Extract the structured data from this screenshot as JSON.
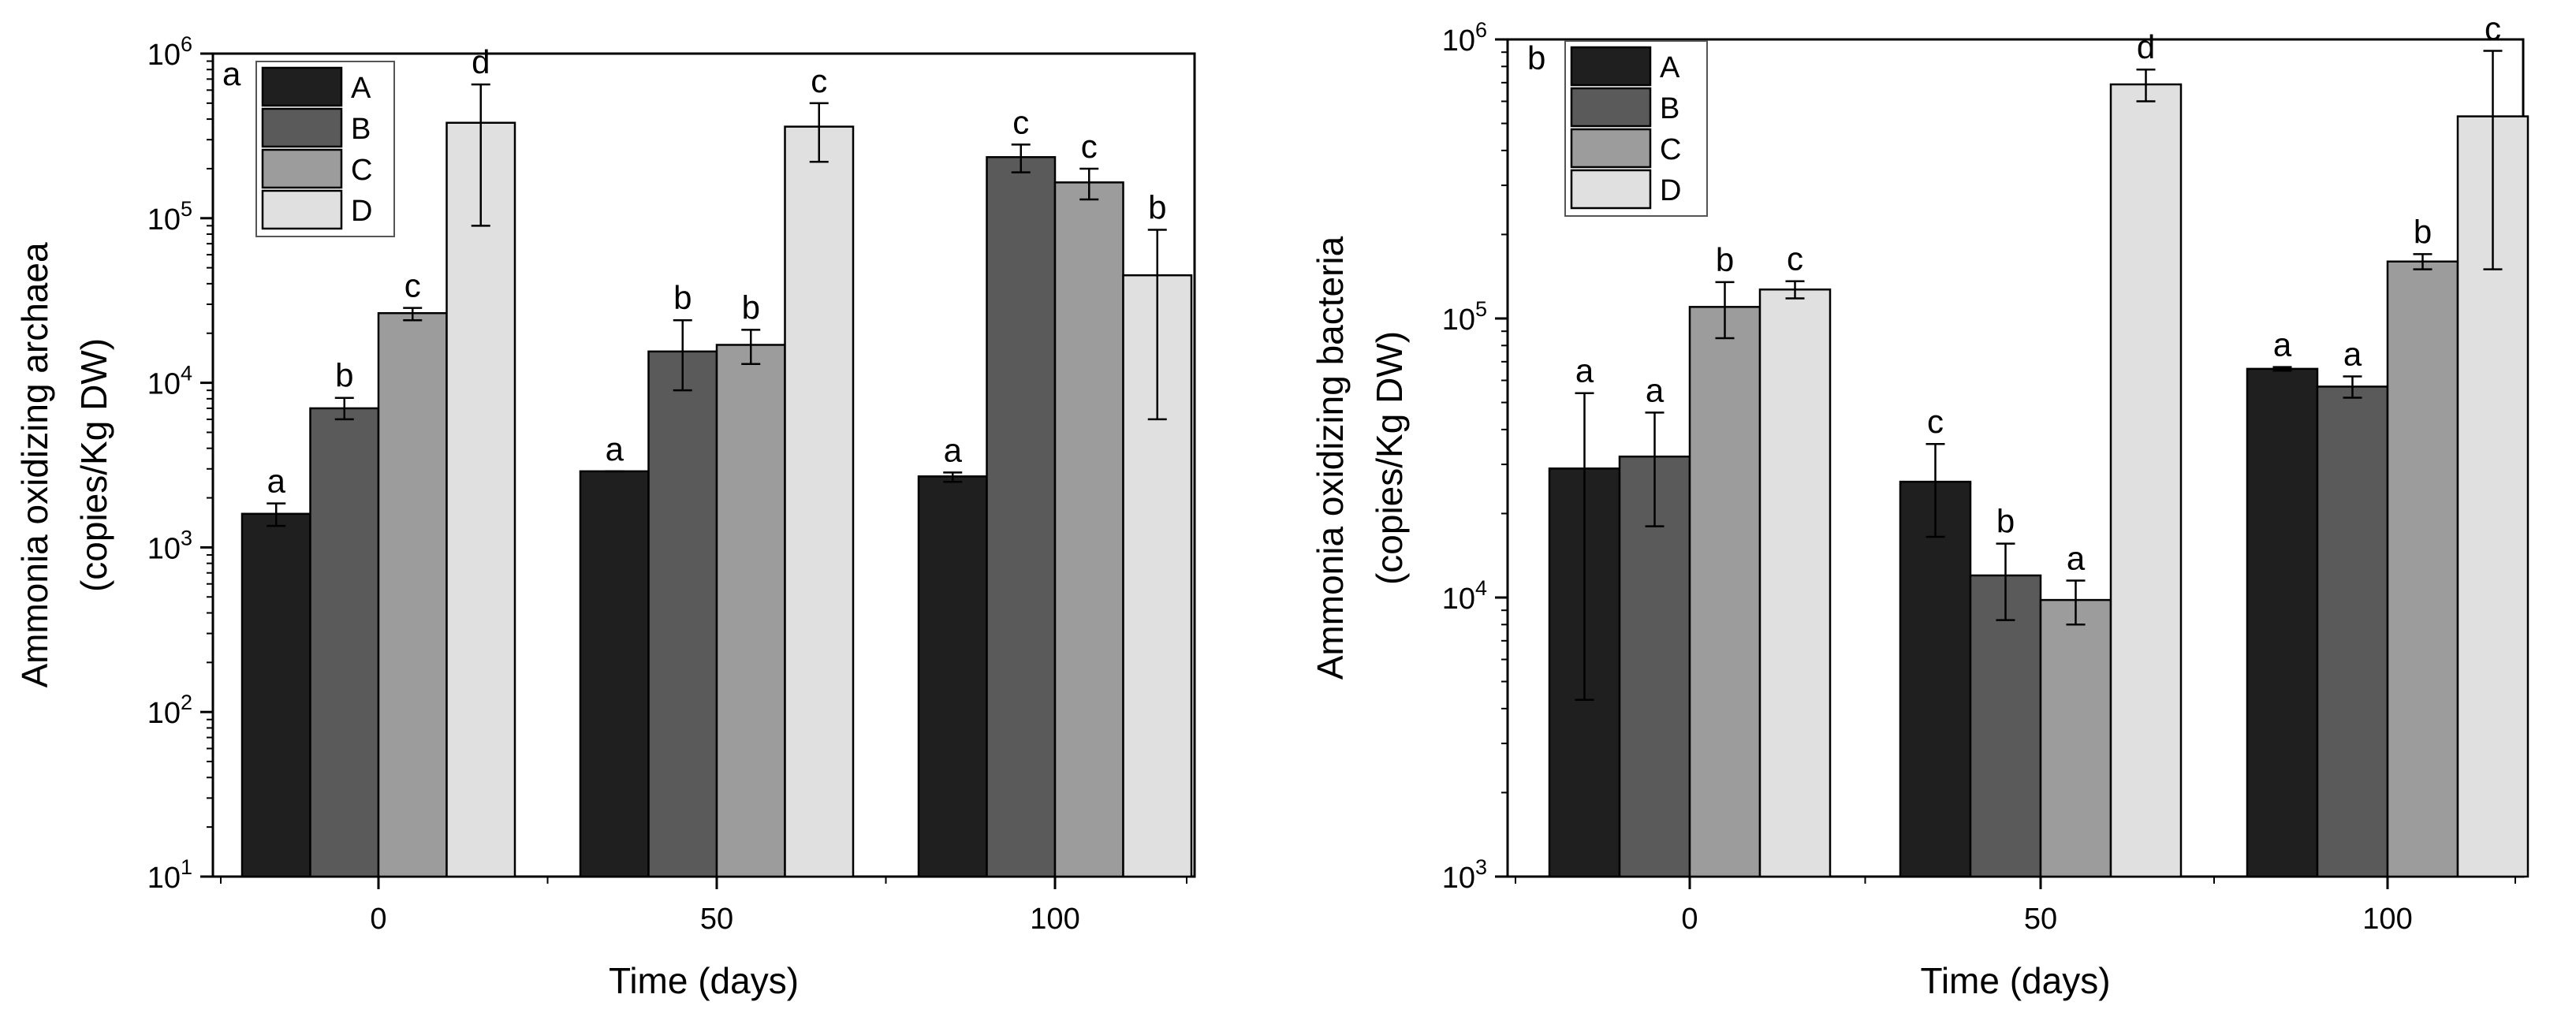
{
  "colors": {
    "A": "#1f1f1f",
    "B": "#5a5a5a",
    "C": "#9c9c9c",
    "D": "#e0e0e0",
    "axis": "#000000"
  },
  "chart_data": [
    {
      "type": "bar",
      "panel_label": "a",
      "yscale": "log",
      "ylim": [
        10,
        1000000
      ],
      "ytick_powers": [
        "1",
        "2",
        "3",
        "4",
        "5",
        "6"
      ],
      "xlabel": "Time (days)",
      "ylabel_line1": "Ammonia oxidizing archaea",
      "ylabel_line2": "(copies/Kg DW)",
      "categories": [
        "0",
        "50",
        "100"
      ],
      "legend": [
        "A",
        "B",
        "C",
        "D"
      ],
      "legend_position": "top-left",
      "series": [
        {
          "name": "A",
          "values": [
            1600,
            2900,
            2700
          ],
          "err_low": [
            1350,
            2900,
            2500
          ],
          "err_high": [
            1850,
            2900,
            2850
          ],
          "letters": [
            "a",
            "a",
            "a"
          ]
        },
        {
          "name": "B",
          "values": [
            7000,
            15500,
            235000
          ],
          "err_low": [
            6000,
            9000,
            190000
          ],
          "err_high": [
            8100,
            24000,
            280000
          ],
          "letters": [
            "b",
            "b",
            "c"
          ]
        },
        {
          "name": "C",
          "values": [
            26500,
            17000,
            165000
          ],
          "err_low": [
            24000,
            13000,
            130000
          ],
          "err_high": [
            28500,
            21000,
            200000
          ],
          "letters": [
            "c",
            "b",
            "c"
          ]
        },
        {
          "name": "D",
          "values": [
            380000,
            360000,
            45000
          ],
          "err_low": [
            90000,
            220000,
            6000
          ],
          "err_high": [
            650000,
            500000,
            85000
          ],
          "letters": [
            "d",
            "c",
            "b"
          ]
        }
      ]
    },
    {
      "type": "bar",
      "panel_label": "b",
      "yscale": "log",
      "ylim": [
        1000,
        1000000
      ],
      "ytick_powers": [
        "3",
        "4",
        "5",
        "6"
      ],
      "xlabel": "Time (days)",
      "ylabel_line1": "Ammonia oxidizing bacteria",
      "ylabel_line2": "(copies/Kg DW)",
      "categories": [
        "0",
        "50",
        "100"
      ],
      "legend": [
        "A",
        "B",
        "C",
        "D"
      ],
      "legend_position": "top-left",
      "series": [
        {
          "name": "A",
          "values": [
            29000,
            26000,
            66000
          ],
          "err_low": [
            4300,
            16500,
            65000
          ],
          "err_high": [
            54000,
            35500,
            67000
          ],
          "letters": [
            "a",
            "c",
            "a"
          ]
        },
        {
          "name": "B",
          "values": [
            32000,
            12000,
            57000
          ],
          "err_low": [
            18000,
            8300,
            52000
          ],
          "err_high": [
            46000,
            15600,
            62000
          ],
          "letters": [
            "a",
            "b",
            "a"
          ]
        },
        {
          "name": "C",
          "values": [
            110000,
            9800,
            160000
          ],
          "err_low": [
            85000,
            8000,
            150000
          ],
          "err_high": [
            135000,
            11500,
            170000
          ],
          "letters": [
            "b",
            "a",
            "b"
          ]
        },
        {
          "name": "D",
          "values": [
            127000,
            690000,
            530000
          ],
          "err_low": [
            118000,
            600000,
            150000
          ],
          "err_high": [
            136000,
            780000,
            910000
          ],
          "letters": [
            "c",
            "d",
            "c"
          ]
        }
      ]
    }
  ]
}
